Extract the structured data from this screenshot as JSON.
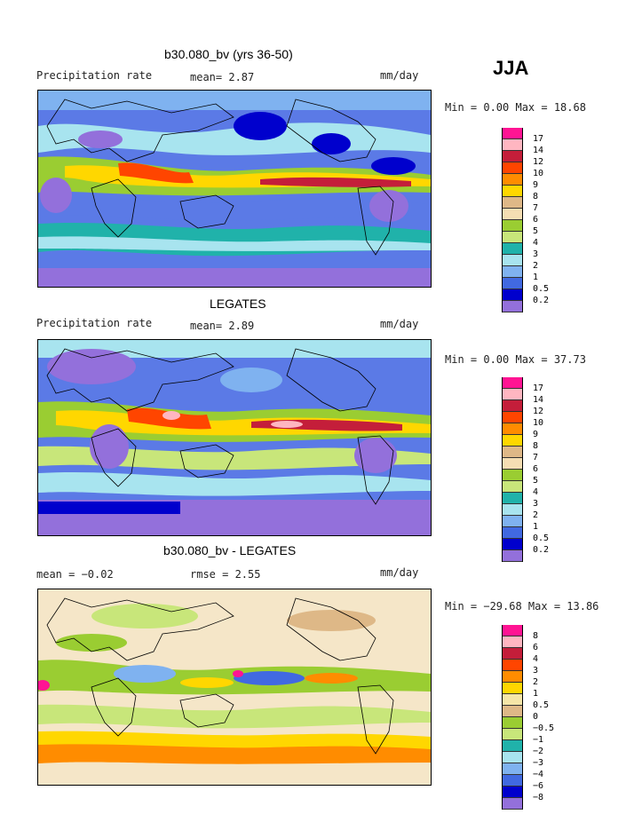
{
  "season": "JJA",
  "panels": [
    {
      "title": "b30.080_bv (yrs 36-50)",
      "left_label": "Precipitation rate",
      "mid_label": "mean=   2.87",
      "units": "mm/day",
      "minmax": "Min =   0.00 Max =  18.68"
    },
    {
      "title": "LEGATES",
      "left_label": "Precipitation rate",
      "mid_label": "mean=   2.89",
      "units": "mm/day",
      "minmax": "Min =   0.00 Max =  37.73"
    },
    {
      "title": "b30.080_bv - LEGATES",
      "left_label": "mean =  −0.02",
      "mid_label": "rmse =   2.55",
      "units": "mm/day",
      "minmax": "Min = −29.68 Max =  13.86"
    }
  ],
  "colorbar_abs": {
    "colors": [
      "#ff1493",
      "#ffb6c1",
      "#c41e3a",
      "#ff4500",
      "#ff8c00",
      "#ffd700",
      "#deb887",
      "#f5deb3",
      "#9acd32",
      "#c8e67a",
      "#20b2aa",
      "#a8e4ef",
      "#7fb2f0",
      "#4169e1",
      "#0000cd",
      "#9370db"
    ],
    "labels": [
      "17",
      "14",
      "12",
      "10",
      "9",
      "8",
      "7",
      "6",
      "5",
      "4",
      "3",
      "2",
      "1",
      "0.5",
      "0.2"
    ]
  },
  "colorbar_diff": {
    "colors": [
      "#ff1493",
      "#ffb6c1",
      "#c41e3a",
      "#ff4500",
      "#ff8c00",
      "#ffd700",
      "#f5e6a8",
      "#deb887",
      "#9acd32",
      "#c8e67a",
      "#20b2aa",
      "#a8e4ef",
      "#7fb2f0",
      "#4169e1",
      "#0000cd",
      "#9370db"
    ],
    "labels": [
      "8",
      "6",
      "4",
      "3",
      "2",
      "1",
      "0.5",
      "0",
      "−0.5",
      "−1",
      "−2",
      "−3",
      "−4",
      "−6",
      "−8"
    ]
  },
  "colors": {
    "land_outline": "#000000",
    "abs_background": "#5b7ae6",
    "diff_background": "#f5e6c8"
  }
}
